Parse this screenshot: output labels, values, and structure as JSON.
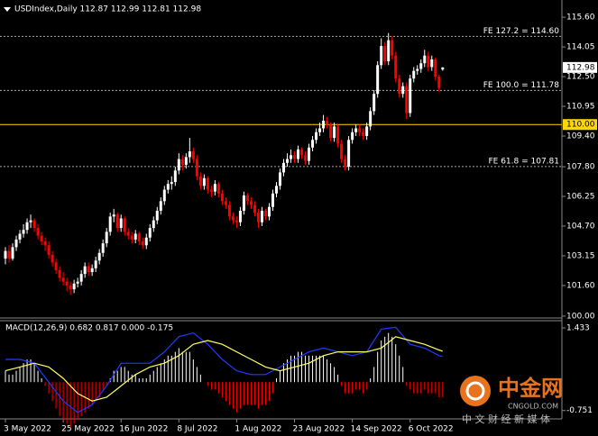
{
  "chart_data": {
    "type": "candlestick",
    "title": "USDIndex,Daily  112.87 112.99 112.81 112.98",
    "up_color": "#ffffff",
    "down_color": "#ff0000",
    "ohlc": [
      [
        103.0,
        103.6,
        102.7,
        103.4
      ],
      [
        103.4,
        103.7,
        102.8,
        103.0
      ],
      [
        103.0,
        103.8,
        102.9,
        103.6
      ],
      [
        103.6,
        104.2,
        103.4,
        104.0
      ],
      [
        104.0,
        104.5,
        103.8,
        104.3
      ],
      [
        104.3,
        104.8,
        104.1,
        104.5
      ],
      [
        104.5,
        105.1,
        104.3,
        104.9
      ],
      [
        104.9,
        105.3,
        104.6,
        105.0
      ],
      [
        105.0,
        105.1,
        104.4,
        104.6
      ],
      [
        104.6,
        104.8,
        104.0,
        104.2
      ],
      [
        104.2,
        104.4,
        103.7,
        103.9
      ],
      [
        103.9,
        104.1,
        103.4,
        103.7
      ],
      [
        103.7,
        103.9,
        103.0,
        103.2
      ],
      [
        103.2,
        103.4,
        102.6,
        102.8
      ],
      [
        102.8,
        103.0,
        102.2,
        102.4
      ],
      [
        102.4,
        102.6,
        101.8,
        102.0
      ],
      [
        102.0,
        102.3,
        101.6,
        101.8
      ],
      [
        101.8,
        102.0,
        101.3,
        101.6
      ],
      [
        101.6,
        101.8,
        101.1,
        101.4
      ],
      [
        101.4,
        101.9,
        101.2,
        101.7
      ],
      [
        101.7,
        102.0,
        101.5,
        101.8
      ],
      [
        101.8,
        102.4,
        101.6,
        102.2
      ],
      [
        102.2,
        102.8,
        102.0,
        102.6
      ],
      [
        102.6,
        102.8,
        102.1,
        102.3
      ],
      [
        102.3,
        102.7,
        102.1,
        102.5
      ],
      [
        102.5,
        103.1,
        102.3,
        102.9
      ],
      [
        102.9,
        103.5,
        102.7,
        103.3
      ],
      [
        103.3,
        104.0,
        103.1,
        103.8
      ],
      [
        103.8,
        104.6,
        103.6,
        104.4
      ],
      [
        104.4,
        105.4,
        104.2,
        105.2
      ],
      [
        105.2,
        105.6,
        104.9,
        105.3
      ],
      [
        105.3,
        105.4,
        104.4,
        104.6
      ],
      [
        104.6,
        105.3,
        104.4,
        105.1
      ],
      [
        105.1,
        105.2,
        104.2,
        104.4
      ],
      [
        104.4,
        104.6,
        104.0,
        104.2
      ],
      [
        104.2,
        104.4,
        103.8,
        104.0
      ],
      [
        104.0,
        104.5,
        103.8,
        104.3
      ],
      [
        104.3,
        104.4,
        103.7,
        103.9
      ],
      [
        103.9,
        104.1,
        103.5,
        103.7
      ],
      [
        103.7,
        104.3,
        103.5,
        104.1
      ],
      [
        104.1,
        104.8,
        103.9,
        104.6
      ],
      [
        104.6,
        105.2,
        104.4,
        105.0
      ],
      [
        105.0,
        105.7,
        104.8,
        105.5
      ],
      [
        105.5,
        106.2,
        105.3,
        106.0
      ],
      [
        106.0,
        106.8,
        105.8,
        106.6
      ],
      [
        106.6,
        107.1,
        106.4,
        106.9
      ],
      [
        106.9,
        107.3,
        106.6,
        107.0
      ],
      [
        107.0,
        107.8,
        106.8,
        107.6
      ],
      [
        107.6,
        108.5,
        107.4,
        108.2
      ],
      [
        108.2,
        108.4,
        107.6,
        107.9
      ],
      [
        107.9,
        108.5,
        107.7,
        108.3
      ],
      [
        108.3,
        109.3,
        108.0,
        108.6
      ],
      [
        108.6,
        108.8,
        108.0,
        108.2
      ],
      [
        108.2,
        108.4,
        107.1,
        107.3
      ],
      [
        107.3,
        107.5,
        106.6,
        106.8
      ],
      [
        106.8,
        107.4,
        106.6,
        107.2
      ],
      [
        107.2,
        107.3,
        106.4,
        106.6
      ],
      [
        106.6,
        106.8,
        106.2,
        106.5
      ],
      [
        106.5,
        107.1,
        106.3,
        106.9
      ],
      [
        106.9,
        107.0,
        106.2,
        106.4
      ],
      [
        106.4,
        106.6,
        105.8,
        106.0
      ],
      [
        106.0,
        106.2,
        105.6,
        105.8
      ],
      [
        105.8,
        106.0,
        105.0,
        105.2
      ],
      [
        105.2,
        105.4,
        104.8,
        105.0
      ],
      [
        105.0,
        105.2,
        104.6,
        104.9
      ],
      [
        104.9,
        105.7,
        104.7,
        105.5
      ],
      [
        105.5,
        106.5,
        105.3,
        106.3
      ],
      [
        106.3,
        106.4,
        105.8,
        106.0
      ],
      [
        106.0,
        106.2,
        105.6,
        105.8
      ],
      [
        105.8,
        106.0,
        105.2,
        105.4
      ],
      [
        105.4,
        105.6,
        104.6,
        104.9
      ],
      [
        104.9,
        105.7,
        104.7,
        105.5
      ],
      [
        105.5,
        105.6,
        105.0,
        105.2
      ],
      [
        105.2,
        105.9,
        105.0,
        105.7
      ],
      [
        105.7,
        106.6,
        105.5,
        106.4
      ],
      [
        106.4,
        107.0,
        106.2,
        106.8
      ],
      [
        106.8,
        107.7,
        106.6,
        107.5
      ],
      [
        107.5,
        108.2,
        107.3,
        108.0
      ],
      [
        108.0,
        108.5,
        107.8,
        108.2
      ],
      [
        108.2,
        108.7,
        108.0,
        108.4
      ],
      [
        108.4,
        108.6,
        108.0,
        108.2
      ],
      [
        108.2,
        108.9,
        108.0,
        108.7
      ],
      [
        108.7,
        108.8,
        108.2,
        108.4
      ],
      [
        108.4,
        108.6,
        107.9,
        108.1
      ],
      [
        108.1,
        109.0,
        107.9,
        108.8
      ],
      [
        108.8,
        109.4,
        108.6,
        109.2
      ],
      [
        109.2,
        109.8,
        109.0,
        109.6
      ],
      [
        109.6,
        110.1,
        109.4,
        109.8
      ],
      [
        109.8,
        110.5,
        109.6,
        110.2
      ],
      [
        110.2,
        110.4,
        109.8,
        110.0
      ],
      [
        110.0,
        110.1,
        109.1,
        109.3
      ],
      [
        109.3,
        110.1,
        109.1,
        109.9
      ],
      [
        109.9,
        110.0,
        108.8,
        109.0
      ],
      [
        109.0,
        109.2,
        108.0,
        108.2
      ],
      [
        108.2,
        108.4,
        107.6,
        107.8
      ],
      [
        107.8,
        109.4,
        107.6,
        109.2
      ],
      [
        109.2,
        109.8,
        109.0,
        109.6
      ],
      [
        109.6,
        110.0,
        109.4,
        109.8
      ],
      [
        109.8,
        110.0,
        109.4,
        109.6
      ],
      [
        109.6,
        109.8,
        109.2,
        109.4
      ],
      [
        109.4,
        110.1,
        109.2,
        109.9
      ],
      [
        109.9,
        110.9,
        109.7,
        110.7
      ],
      [
        110.7,
        111.8,
        110.5,
        111.6
      ],
      [
        111.6,
        113.3,
        111.4,
        113.1
      ],
      [
        113.1,
        114.5,
        112.9,
        114.1
      ],
      [
        114.1,
        114.3,
        113.1,
        113.3
      ],
      [
        113.3,
        114.78,
        113.1,
        114.4
      ],
      [
        114.4,
        114.6,
        113.4,
        113.6
      ],
      [
        113.6,
        113.8,
        112.2,
        112.4
      ],
      [
        112.4,
        112.6,
        111.4,
        111.6
      ],
      [
        111.6,
        112.2,
        111.4,
        112.0
      ],
      [
        112.0,
        112.2,
        110.3,
        110.6
      ],
      [
        110.6,
        112.6,
        110.4,
        112.4
      ],
      [
        112.4,
        113.0,
        112.2,
        112.8
      ],
      [
        112.8,
        113.1,
        112.6,
        112.9
      ],
      [
        112.9,
        113.4,
        112.7,
        113.2
      ],
      [
        113.2,
        113.9,
        113.0,
        113.6
      ],
      [
        113.6,
        113.8,
        112.8,
        113.0
      ],
      [
        113.0,
        113.6,
        112.8,
        113.4
      ],
      [
        113.4,
        113.5,
        112.3,
        112.5
      ],
      [
        112.5,
        112.6,
        111.7,
        111.9
      ],
      [
        112.87,
        112.99,
        112.81,
        112.98
      ]
    ],
    "xlim": [
      -1.5,
      154
    ],
    "xticks": [
      {
        "value": 0,
        "label": "3 May 2022"
      },
      {
        "value": 16,
        "label": "25 May 2022"
      },
      {
        "value": 32,
        "label": "16 Jun 2022"
      },
      {
        "value": 48,
        "label": "8 Jul 2022"
      },
      {
        "value": 64,
        "label": "1 Aug 2022"
      },
      {
        "value": 80,
        "label": "23 Aug 2022"
      },
      {
        "value": 96,
        "label": "14 Sep 2022"
      },
      {
        "value": 112,
        "label": "6 Oct 2022"
      }
    ],
    "ylim": [
      99.95,
      116.5
    ],
    "yticks": [
      {
        "value": 115.6,
        "label": "115.60"
      },
      114.05,
      {
        "value": 112.5,
        "label": "112.50"
      },
      110.95,
      {
        "value": 109.4,
        "label": "109.40"
      },
      {
        "value": 107.8,
        "label": "107.80"
      },
      106.25,
      {
        "value": 104.7,
        "label": "104.70"
      },
      103.15,
      {
        "value": 101.6,
        "label": "101.60"
      },
      {
        "value": 100,
        "label": "100.00"
      }
    ],
    "levels": [
      {
        "value": 114.6,
        "label": "FE 127.2 = 114.60"
      },
      {
        "value": 111.78,
        "label": "FE 100.0 = 111.78"
      },
      {
        "value": 107.81,
        "label": "FE 61.8 = 107.81"
      }
    ],
    "hline": {
      "value": 110,
      "label": "110.00",
      "color": "#ffd700"
    },
    "last_price": 112.98,
    "macd": {
      "title": "MACD(12,26,9) 0.682 0.817 0.000 -0.175",
      "ylim": [
        -0.9,
        1.6
      ],
      "yticks": [
        1.433,
        -0.751
      ],
      "hist_up_color": "#ffffff",
      "hist_down_color": "#ff0000",
      "histogram": [
        0.3,
        0.2,
        0.2,
        0.3,
        0.4,
        0.5,
        0.6,
        0.6,
        0.5,
        0.3,
        0.1,
        -0.1,
        -0.3,
        -0.5,
        -0.7,
        -0.9,
        -1.0,
        -1.1,
        -1.2,
        -1.1,
        -1.0,
        -0.9,
        -0.8,
        -0.7,
        -0.6,
        -0.5,
        -0.4,
        -0.2,
        -0.1,
        0.1,
        0.3,
        0.3,
        0.4,
        0.4,
        0.3,
        0.2,
        0.2,
        0.1,
        0.1,
        0.1,
        0.2,
        0.3,
        0.4,
        0.5,
        0.6,
        0.7,
        0.7,
        0.8,
        0.9,
        0.8,
        0.8,
        0.8,
        0.6,
        0.4,
        0.2,
        0.0,
        -0.1,
        -0.2,
        -0.2,
        -0.3,
        -0.4,
        -0.5,
        -0.6,
        -0.7,
        -0.8,
        -0.7,
        -0.6,
        -0.6,
        -0.6,
        -0.6,
        -0.7,
        -0.6,
        -0.6,
        -0.5,
        -0.3,
        0.1,
        0.3,
        0.5,
        0.6,
        0.7,
        0.7,
        0.8,
        0.8,
        0.7,
        0.7,
        0.7,
        0.7,
        0.7,
        0.7,
        0.6,
        0.5,
        0.4,
        0.2,
        -0.1,
        -0.3,
        -0.3,
        -0.3,
        -0.2,
        -0.2,
        -0.3,
        -0.2,
        0.1,
        0.4,
        0.8,
        1.1,
        1.2,
        1.3,
        1.2,
        1.0,
        0.7,
        0.4,
        -0.1,
        -0.2,
        -0.3,
        -0.3,
        -0.3,
        -0.2,
        -0.3,
        -0.3,
        -0.3,
        -0.4,
        -0.4
      ],
      "lines": [
        {
          "color": "#1e3cff",
          "x": [
            0,
            4,
            8,
            12,
            16,
            20,
            24,
            28,
            32,
            36,
            40,
            44,
            48,
            52,
            56,
            60,
            64,
            68,
            72,
            76,
            80,
            84,
            88,
            92,
            96,
            100,
            104,
            108,
            112,
            116,
            120,
            121
          ],
          "values": [
            0.6,
            0.6,
            0.5,
            0.0,
            -0.5,
            -0.8,
            -0.6,
            -0.1,
            0.5,
            0.5,
            0.5,
            0.8,
            1.2,
            1.3,
            1.0,
            0.6,
            0.3,
            0.2,
            0.2,
            0.4,
            0.6,
            0.8,
            0.9,
            0.8,
            0.7,
            0.8,
            1.4,
            1.45,
            1.0,
            0.9,
            0.7,
            0.682
          ]
        },
        {
          "color": "#ffff66",
          "x": [
            0,
            4,
            8,
            12,
            16,
            20,
            24,
            28,
            32,
            36,
            40,
            44,
            48,
            52,
            56,
            60,
            64,
            68,
            72,
            76,
            80,
            84,
            88,
            92,
            96,
            100,
            104,
            108,
            112,
            116,
            120,
            121
          ],
          "values": [
            0.3,
            0.4,
            0.5,
            0.4,
            0.1,
            -0.3,
            -0.5,
            -0.4,
            -0.1,
            0.2,
            0.4,
            0.5,
            0.7,
            1.0,
            1.1,
            1.0,
            0.8,
            0.6,
            0.4,
            0.3,
            0.4,
            0.5,
            0.7,
            0.8,
            0.8,
            0.8,
            0.9,
            1.2,
            1.1,
            1.0,
            0.85,
            0.817
          ]
        }
      ]
    },
    "watermark": {
      "brand": "中金网",
      "site": "CNGOLD.COM",
      "tagline": "中 文 财 经 新 媒 体"
    }
  }
}
